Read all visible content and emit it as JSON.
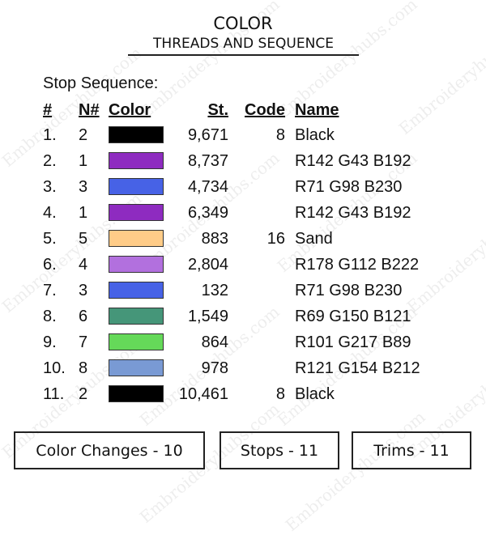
{
  "watermark": "Embroideryhubs.com",
  "title": "COLOR",
  "subtitle": "THREADS AND SEQUENCE",
  "stop_sequence_label": "Stop Sequence:",
  "columns": {
    "num": "#",
    "n": "N#",
    "color": "Color",
    "st": "St.",
    "code": "Code",
    "name": "Name"
  },
  "rows": [
    {
      "num": "1.",
      "n": "2",
      "color": "#000000",
      "st": "9,671",
      "code": "8",
      "name": "Black"
    },
    {
      "num": "2.",
      "n": "1",
      "color": "#8E2BC0",
      "st": "8,737",
      "code": "",
      "name": "R142 G43 B192"
    },
    {
      "num": "3.",
      "n": "3",
      "color": "#4762E6",
      "st": "4,734",
      "code": "",
      "name": "R71 G98 B230"
    },
    {
      "num": "4.",
      "n": "1",
      "color": "#8E2BC0",
      "st": "6,349",
      "code": "",
      "name": "R142 G43 B192"
    },
    {
      "num": "5.",
      "n": "5",
      "color": "#FFCC88",
      "st": "883",
      "code": "16",
      "name": "Sand"
    },
    {
      "num": "6.",
      "n": "4",
      "color": "#B270DE",
      "st": "2,804",
      "code": "",
      "name": "R178 G112 B222"
    },
    {
      "num": "7.",
      "n": "3",
      "color": "#4762E6",
      "st": "132",
      "code": "",
      "name": "R71 G98 B230"
    },
    {
      "num": "8.",
      "n": "6",
      "color": "#459679",
      "st": "1,549",
      "code": "",
      "name": "R69 G150 B121"
    },
    {
      "num": "9.",
      "n": "7",
      "color": "#65D959",
      "st": "864",
      "code": "",
      "name": "R101 G217 B89"
    },
    {
      "num": "10.",
      "n": "8",
      "color": "#799AD4",
      "st": "978",
      "code": "",
      "name": "R121 G154 B212"
    },
    {
      "num": "11.",
      "n": "2",
      "color": "#000000",
      "st": "10,461",
      "code": "8",
      "name": "Black"
    }
  ],
  "summary": {
    "color_changes": "Color Changes - 10",
    "stops": "Stops - 11",
    "trims": "Trims - 11"
  }
}
